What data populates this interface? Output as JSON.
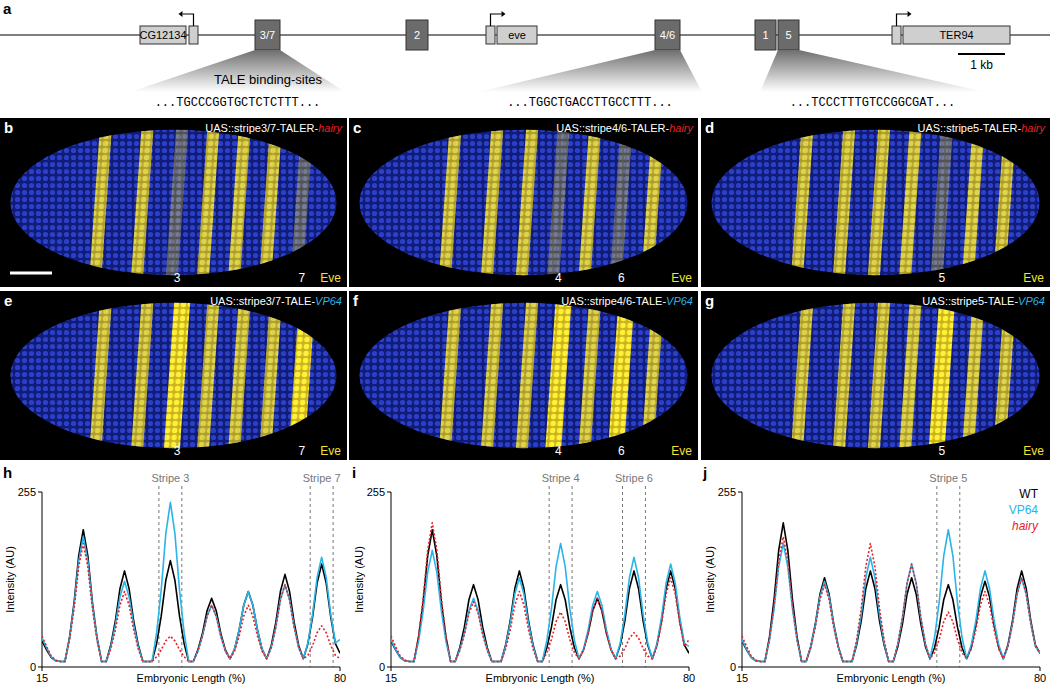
{
  "gene_map": {
    "panel_label": "a",
    "genes": [
      "CG12134",
      "eve",
      "TER94"
    ],
    "enhancers": [
      "3/7",
      "2",
      "4/6",
      "1",
      "5"
    ],
    "scale_bar": "1 kb",
    "binding_sites_label": "TALE binding-sites",
    "binding_sites": [
      "...TGCCCGGTGCTCTCTTT...",
      "...TGGCTGACCTTGCCTTT...",
      "...TCCCTTTGTCCGGCGAT..."
    ]
  },
  "embryo_panels": [
    {
      "panel_label": "b",
      "construct": "UAS::stripe3/7-TALER-",
      "effector": "hairy",
      "effector_color": "#e8202a",
      "stripe_labels": [
        "3",
        "7"
      ],
      "stain": "Eve"
    },
    {
      "panel_label": "c",
      "construct": "UAS::stripe4/6-TALER-",
      "effector": "hairy",
      "effector_color": "#e8202a",
      "stripe_labels": [
        "4",
        "6"
      ],
      "stain": "Eve"
    },
    {
      "panel_label": "d",
      "construct": "UAS::stripe5-TALER-",
      "effector": "hairy",
      "effector_color": "#e8202a",
      "stripe_labels": [
        "5"
      ],
      "stain": "Eve"
    },
    {
      "panel_label": "e",
      "construct": "UAS::stripe3/7-TALE-",
      "effector": "VP64",
      "effector_color": "#29b5e8",
      "stripe_labels": [
        "3",
        "7"
      ],
      "stain": "Eve"
    },
    {
      "panel_label": "f",
      "construct": "UAS::stripe4/6-TALE-",
      "effector": "VP64",
      "effector_color": "#29b5e8",
      "stripe_labels": [
        "4",
        "6"
      ],
      "stain": "Eve"
    },
    {
      "panel_label": "g",
      "construct": "UAS::stripe5-TALE-",
      "effector": "VP64",
      "effector_color": "#29b5e8",
      "stripe_labels": [
        "5"
      ],
      "stain": "Eve"
    }
  ],
  "chart_data": [
    {
      "type": "line",
      "panel_label": "h",
      "x_label": "Embryonic Length (%)",
      "y_label": "Intensity (AU)",
      "xlim": [
        15,
        80
      ],
      "ylim": [
        0,
        255
      ],
      "xticks": [
        15,
        80
      ],
      "yticks": [
        0,
        255
      ],
      "annotations": [
        {
          "text": "Stripe 3",
          "x": [
            40.5,
            45.5
          ]
        },
        {
          "text": "Stripe 7",
          "x": [
            73.5,
            78.5
          ]
        }
      ],
      "x": [
        15,
        16,
        17,
        18,
        19,
        20,
        21,
        22,
        23,
        24,
        25,
        26,
        27,
        28,
        29,
        30,
        31,
        32,
        33,
        34,
        35,
        36,
        37,
        38,
        39,
        40,
        41,
        42,
        43,
        44,
        45,
        46,
        47,
        48,
        49,
        50,
        51,
        52,
        53,
        54,
        55,
        56,
        57,
        58,
        59,
        60,
        61,
        62,
        63,
        64,
        65,
        66,
        67,
        68,
        69,
        70,
        71,
        72,
        73,
        74,
        75,
        76,
        77,
        78,
        79,
        80
      ],
      "series": [
        {
          "name": "WT",
          "color": "#000000",
          "line_style": "solid",
          "values": [
            38,
            25,
            14,
            9,
            8,
            8,
            43,
            94,
            162,
            200,
            162,
            94,
            43,
            8,
            8,
            32,
            67,
            114,
            140,
            114,
            67,
            32,
            8,
            8,
            8,
            34,
            74,
            126,
            155,
            126,
            74,
            34,
            8,
            8,
            25,
            49,
            82,
            100,
            82,
            49,
            25,
            12,
            26,
            54,
            90,
            110,
            90,
            54,
            26,
            12,
            31,
            65,
            110,
            135,
            110,
            65,
            31,
            12,
            34,
            72,
            122,
            150,
            122,
            72,
            34,
            20
          ]
        },
        {
          "name": "VP64",
          "color": "#29b5e8",
          "line_style": "solid",
          "values": [
            42,
            28,
            15,
            9,
            8,
            8,
            41,
            90,
            154,
            190,
            154,
            90,
            41,
            8,
            8,
            29,
            61,
            102,
            125,
            102,
            61,
            29,
            8,
            8,
            8,
            50,
            112,
            194,
            240,
            194,
            112,
            50,
            8,
            8,
            23,
            45,
            74,
            90,
            74,
            45,
            23,
            12,
            26,
            54,
            90,
            110,
            90,
            54,
            26,
            12,
            28,
            58,
            98,
            120,
            98,
            58,
            28,
            12,
            35,
            76,
            130,
            160,
            130,
            76,
            35,
            40
          ]
        },
        {
          "name": "hairy",
          "color": "#e8202a",
          "line_style": "dotted",
          "values": [
            45,
            30,
            16,
            10,
            8,
            8,
            39,
            85,
            146,
            180,
            146,
            85,
            39,
            8,
            8,
            26,
            54,
            90,
            110,
            90,
            54,
            26,
            8,
            8,
            8,
            15,
            25,
            38,
            45,
            38,
            25,
            15,
            8,
            8,
            23,
            45,
            74,
            90,
            74,
            45,
            23,
            12,
            23,
            45,
            74,
            90,
            74,
            45,
            23,
            12,
            28,
            58,
            98,
            120,
            98,
            58,
            28,
            12,
            17,
            31,
            50,
            60,
            50,
            31,
            17,
            12
          ]
        }
      ]
    },
    {
      "type": "line",
      "panel_label": "i",
      "x_label": "Embryonic Length (%)",
      "y_label": "Intensity (AU)",
      "xlim": [
        15,
        80
      ],
      "ylim": [
        0,
        255
      ],
      "xticks": [
        15,
        80
      ],
      "yticks": [
        0,
        255
      ],
      "annotations": [
        {
          "text": "Stripe 4",
          "x": [
            49.5,
            54.5
          ]
        },
        {
          "text": "Stripe 6",
          "x": [
            65.5,
            70.5
          ]
        }
      ],
      "x": [
        15,
        16,
        17,
        18,
        19,
        20,
        21,
        22,
        23,
        24,
        25,
        26,
        27,
        28,
        29,
        30,
        31,
        32,
        33,
        34,
        35,
        36,
        37,
        38,
        39,
        40,
        41,
        42,
        43,
        44,
        45,
        46,
        47,
        48,
        49,
        50,
        51,
        52,
        53,
        54,
        55,
        56,
        57,
        58,
        59,
        60,
        61,
        62,
        63,
        64,
        65,
        66,
        67,
        68,
        69,
        70,
        71,
        72,
        73,
        74,
        75,
        76,
        77,
        78,
        79,
        80
      ],
      "series": [
        {
          "name": "WT",
          "color": "#000000",
          "line_style": "solid",
          "values": [
            38,
            25,
            14,
            9,
            8,
            8,
            43,
            94,
            162,
            200,
            162,
            94,
            43,
            8,
            8,
            28,
            58,
            98,
            120,
            98,
            58,
            28,
            8,
            8,
            8,
            32,
            67,
            114,
            140,
            114,
            67,
            32,
            8,
            8,
            28,
            58,
            98,
            120,
            98,
            58,
            28,
            12,
            25,
            49,
            82,
            100,
            82,
            49,
            25,
            12,
            32,
            67,
            114,
            140,
            114,
            67,
            32,
            12,
            32,
            67,
            114,
            140,
            114,
            67,
            32,
            20
          ]
        },
        {
          "name": "VP64",
          "color": "#29b5e8",
          "line_style": "solid",
          "values": [
            40,
            26,
            14,
            9,
            8,
            8,
            37,
            81,
            138,
            170,
            138,
            81,
            37,
            8,
            8,
            25,
            49,
            82,
            100,
            82,
            49,
            25,
            8,
            8,
            8,
            30,
            63,
            106,
            130,
            106,
            63,
            30,
            8,
            8,
            39,
            85,
            146,
            180,
            146,
            85,
            39,
            12,
            26,
            54,
            90,
            110,
            90,
            54,
            26,
            12,
            35,
            76,
            130,
            160,
            130,
            76,
            35,
            12,
            34,
            72,
            122,
            150,
            122,
            72,
            34,
            30
          ]
        },
        {
          "name": "hairy",
          "color": "#e8202a",
          "line_style": "dotted",
          "values": [
            45,
            30,
            16,
            10,
            8,
            8,
            44,
            99,
            170,
            210,
            170,
            99,
            44,
            8,
            8,
            24,
            47,
            78,
            95,
            78,
            47,
            24,
            8,
            8,
            8,
            26,
            54,
            90,
            110,
            90,
            54,
            26,
            8,
            8,
            21,
            40,
            66,
            80,
            66,
            40,
            21,
            12,
            25,
            49,
            82,
            100,
            82,
            49,
            25,
            12,
            16,
            27,
            42,
            50,
            42,
            27,
            16,
            12,
            30,
            63,
            106,
            130,
            106,
            63,
            30,
            40
          ]
        }
      ]
    },
    {
      "type": "line",
      "panel_label": "j",
      "x_label": "Embryonic Length (%)",
      "y_label": "Intensity (AU)",
      "xlim": [
        15,
        80
      ],
      "ylim": [
        0,
        255
      ],
      "xticks": [
        15,
        80
      ],
      "yticks": [
        0,
        255
      ],
      "legend": "upper-right",
      "annotations": [
        {
          "text": "Stripe 5",
          "x": [
            57.5,
            62.5
          ]
        }
      ],
      "x": [
        15,
        16,
        17,
        18,
        19,
        20,
        21,
        22,
        23,
        24,
        25,
        26,
        27,
        28,
        29,
        30,
        31,
        32,
        33,
        34,
        35,
        36,
        37,
        38,
        39,
        40,
        41,
        42,
        43,
        44,
        45,
        46,
        47,
        48,
        49,
        50,
        51,
        52,
        53,
        54,
        55,
        56,
        57,
        58,
        59,
        60,
        61,
        62,
        63,
        64,
        65,
        66,
        67,
        68,
        69,
        70,
        71,
        72,
        73,
        74,
        75,
        76,
        77,
        78,
        79,
        80
      ],
      "series": [
        {
          "name": "WT",
          "color": "#000000",
          "line_style": "solid",
          "values": [
            38,
            25,
            14,
            9,
            8,
            8,
            44,
            99,
            170,
            210,
            170,
            99,
            44,
            8,
            8,
            30,
            63,
            106,
            130,
            106,
            63,
            30,
            8,
            8,
            8,
            32,
            67,
            114,
            140,
            114,
            67,
            32,
            8,
            8,
            30,
            63,
            106,
            130,
            106,
            63,
            30,
            12,
            28,
            58,
            98,
            120,
            98,
            58,
            28,
            12,
            29,
            61,
            102,
            125,
            102,
            61,
            29,
            12,
            32,
            67,
            114,
            140,
            114,
            67,
            32,
            20
          ]
        },
        {
          "name": "VP64",
          "color": "#29b5e8",
          "line_style": "solid",
          "values": [
            40,
            26,
            14,
            9,
            8,
            8,
            39,
            85,
            146,
            180,
            146,
            85,
            39,
            8,
            8,
            29,
            61,
            102,
            125,
            102,
            61,
            29,
            8,
            8,
            8,
            35,
            76,
            130,
            160,
            130,
            76,
            35,
            8,
            8,
            34,
            72,
            122,
            150,
            122,
            72,
            34,
            12,
            43,
            94,
            162,
            200,
            162,
            94,
            43,
            12,
            32,
            67,
            114,
            140,
            114,
            67,
            32,
            12,
            30,
            63,
            106,
            130,
            106,
            63,
            30,
            20
          ]
        },
        {
          "name": "hairy",
          "color": "#e8202a",
          "line_style": "dotted",
          "values": [
            45,
            30,
            16,
            10,
            8,
            8,
            41,
            90,
            154,
            190,
            154,
            90,
            41,
            8,
            8,
            28,
            58,
            98,
            120,
            98,
            58,
            28,
            8,
            8,
            8,
            39,
            85,
            146,
            180,
            146,
            85,
            39,
            8,
            8,
            34,
            72,
            122,
            150,
            122,
            72,
            34,
            12,
            21,
            40,
            66,
            80,
            66,
            40,
            21,
            12,
            26,
            54,
            90,
            110,
            90,
            54,
            26,
            12,
            30,
            63,
            106,
            130,
            106,
            63,
            30,
            20
          ]
        }
      ]
    }
  ]
}
